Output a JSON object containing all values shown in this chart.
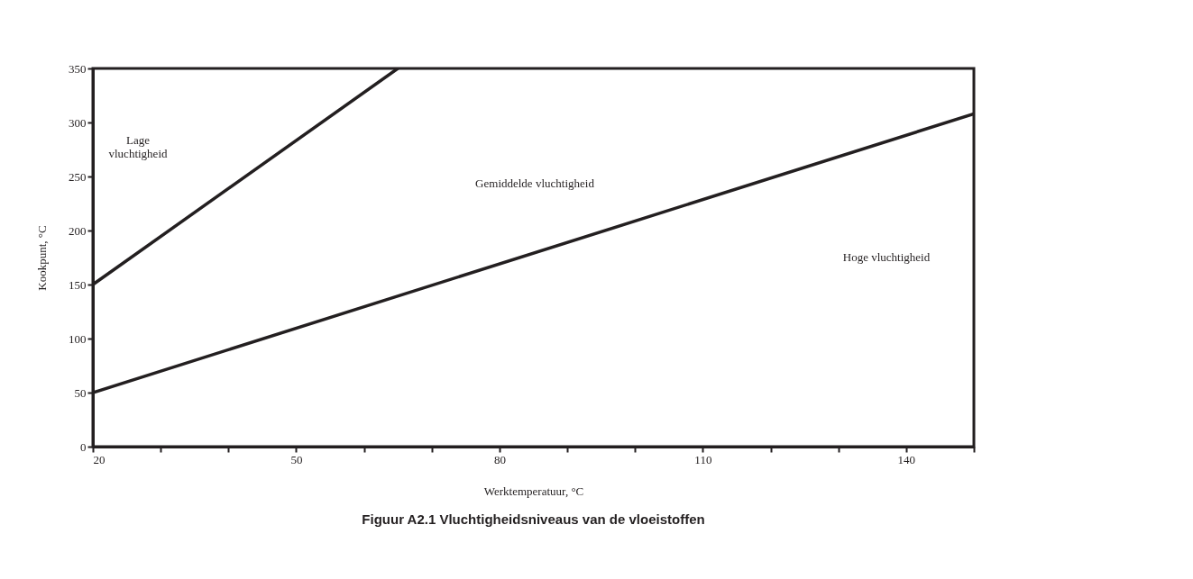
{
  "chart_data": {
    "type": "line",
    "title": "Figuur A2.1 Vluchtigheidsniveaus van de vloeistoffen",
    "xlabel": "Werktemperatuur, °C",
    "ylabel": "Kookpunt, °C",
    "series": [
      {
        "x": [
          20,
          65
        ],
        "values": [
          150,
          350
        ],
        "color": "#231f20"
      },
      {
        "x": [
          20,
          150
        ],
        "values": [
          50,
          308
        ],
        "color": "#231f20"
      }
    ],
    "xlim": [
      20,
      150
    ],
    "ylim": [
      0,
      350
    ],
    "xticks": [
      20,
      {
        "value": 30,
        "label": null
      },
      {
        "value": 40,
        "label": null
      },
      50,
      {
        "value": 60,
        "label": null
      },
      {
        "value": 70,
        "label": null
      },
      80,
      {
        "value": 90,
        "label": null
      },
      {
        "value": 100,
        "label": null
      },
      110,
      {
        "value": 120,
        "label": null
      },
      {
        "value": 130,
        "label": null
      },
      140,
      {
        "value": 150,
        "label": null
      }
    ],
    "yticks": [
      0,
      50,
      100,
      150,
      200,
      250,
      300,
      350
    ],
    "annotations": [
      "Lage\nvluchtigheid",
      "Gemiddelde vluchtigheid",
      "Hoge vluchtigheid"
    ],
    "marker": "none",
    "line_style": "solid"
  }
}
